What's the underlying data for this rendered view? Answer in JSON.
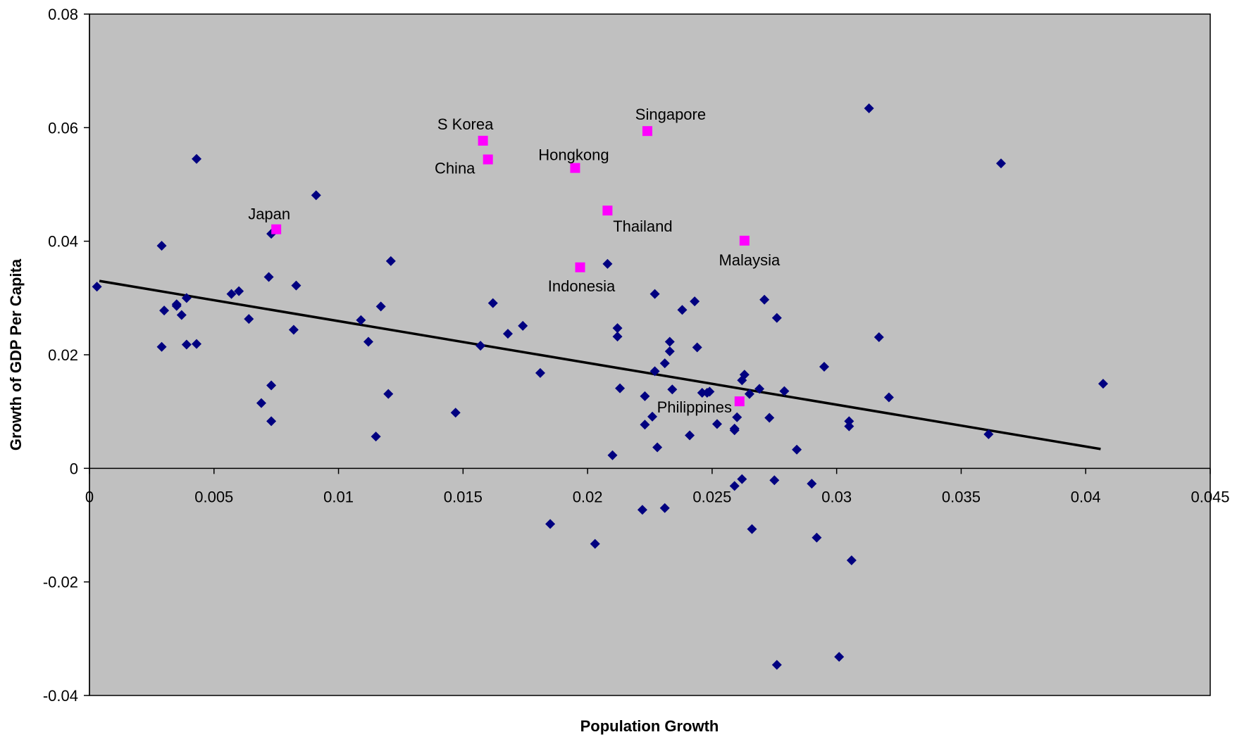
{
  "chart_data": {
    "type": "scatter",
    "title": "",
    "xlabel": "Population Growth",
    "ylabel": "Growth of GDP Per Capita",
    "xlim": [
      0,
      0.045
    ],
    "ylim": [
      -0.04,
      0.08
    ],
    "x_ticks": [
      0,
      0.005,
      0.01,
      0.015,
      0.02,
      0.025,
      0.03,
      0.035,
      0.04,
      0.045
    ],
    "x_tick_labels": [
      "0",
      "0.005",
      "0.01",
      "0.015",
      "0.02",
      "0.025",
      "0.03",
      "0.035",
      "0.04",
      "0.045"
    ],
    "y_ticks": [
      -0.04,
      -0.02,
      0,
      0.02,
      0.04,
      0.06,
      0.08
    ],
    "y_tick_labels": [
      "-0.04",
      "-0.02",
      "0",
      "0.02",
      "0.04",
      "0.06",
      "0.08"
    ],
    "grid": false,
    "legend": "none",
    "colors": {
      "plot_background": "#c0c0c0",
      "other_countries": "#000080",
      "asian_countries": "#ff00ff",
      "trendline": "#000000"
    },
    "trendline": {
      "x": [
        0.0004,
        0.0406
      ],
      "y": [
        0.033,
        0.0034
      ]
    },
    "series": [
      {
        "marker": "diamond",
        "points": [
          [
            0.0003,
            0.032
          ],
          [
            0.0029,
            0.0392
          ],
          [
            0.003,
            0.0278
          ],
          [
            0.0029,
            0.0214
          ],
          [
            0.0035,
            0.0289
          ],
          [
            0.0035,
            0.0286
          ],
          [
            0.0037,
            0.027
          ],
          [
            0.0039,
            0.03
          ],
          [
            0.0039,
            0.0218
          ],
          [
            0.0043,
            0.0219
          ],
          [
            0.0043,
            0.0545
          ],
          [
            0.0057,
            0.0307
          ],
          [
            0.006,
            0.0312
          ],
          [
            0.0064,
            0.0263
          ],
          [
            0.0069,
            0.0115
          ],
          [
            0.0072,
            0.0337
          ],
          [
            0.0073,
            0.0413
          ],
          [
            0.0073,
            0.0146
          ],
          [
            0.0073,
            0.0083
          ],
          [
            0.0082,
            0.0244
          ],
          [
            0.0083,
            0.0322
          ],
          [
            0.0091,
            0.0481
          ],
          [
            0.0109,
            0.0261
          ],
          [
            0.0112,
            0.0223
          ],
          [
            0.0115,
            0.0056
          ],
          [
            0.0117,
            0.0285
          ],
          [
            0.012,
            0.0131
          ],
          [
            0.0121,
            0.0365
          ],
          [
            0.0147,
            0.0098
          ],
          [
            0.0157,
            0.0216
          ],
          [
            0.0162,
            0.0291
          ],
          [
            0.0168,
            0.0237
          ],
          [
            0.0174,
            0.0251
          ],
          [
            0.0181,
            0.0168
          ],
          [
            0.0185,
            -0.0098
          ],
          [
            0.0203,
            -0.0133
          ],
          [
            0.0208,
            0.036
          ],
          [
            0.021,
            0.0023
          ],
          [
            0.0212,
            0.0247
          ],
          [
            0.0212,
            0.0232
          ],
          [
            0.0213,
            0.0141
          ],
          [
            0.0222,
            -0.0073
          ],
          [
            0.0223,
            0.0077
          ],
          [
            0.0223,
            0.0127
          ],
          [
            0.0226,
            0.0091
          ],
          [
            0.0227,
            0.0307
          ],
          [
            0.0227,
            0.0171
          ],
          [
            0.0228,
            0.0037
          ],
          [
            0.0231,
            0.0185
          ],
          [
            0.0231,
            -0.007
          ],
          [
            0.0233,
            0.0223
          ],
          [
            0.0233,
            0.0206
          ],
          [
            0.0234,
            0.0139
          ],
          [
            0.0238,
            0.0279
          ],
          [
            0.0241,
            0.0058
          ],
          [
            0.0243,
            0.0294
          ],
          [
            0.0244,
            0.0213
          ],
          [
            0.0246,
            0.0133
          ],
          [
            0.0248,
            0.0133
          ],
          [
            0.0249,
            0.0135
          ],
          [
            0.0252,
            0.0078
          ],
          [
            0.0259,
            -0.0031
          ],
          [
            0.0259,
            0.0067
          ],
          [
            0.0259,
            0.007
          ],
          [
            0.026,
            0.009
          ],
          [
            0.0262,
            -0.0019
          ],
          [
            0.0262,
            0.0155
          ],
          [
            0.0263,
            0.0165
          ],
          [
            0.0265,
            0.0131
          ],
          [
            0.0266,
            -0.0107
          ],
          [
            0.0269,
            0.014
          ],
          [
            0.0271,
            0.0297
          ],
          [
            0.0273,
            0.0089
          ],
          [
            0.0275,
            -0.0021
          ],
          [
            0.0276,
            0.0265
          ],
          [
            0.0276,
            -0.0346
          ],
          [
            0.0279,
            0.0136
          ],
          [
            0.0284,
            0.0033
          ],
          [
            0.029,
            -0.0027
          ],
          [
            0.0292,
            -0.0122
          ],
          [
            0.0295,
            0.0179
          ],
          [
            0.0301,
            -0.0332
          ],
          [
            0.0305,
            0.0083
          ],
          [
            0.0305,
            0.0074
          ],
          [
            0.0306,
            -0.0162
          ],
          [
            0.0313,
            0.0634
          ],
          [
            0.0317,
            0.0231
          ],
          [
            0.0321,
            0.0125
          ],
          [
            0.0361,
            0.006
          ],
          [
            0.0366,
            0.0537
          ],
          [
            0.0407,
            0.0149
          ]
        ]
      },
      {
        "marker": "square",
        "points": [
          {
            "label": "Japan",
            "x": 0.0075,
            "y": 0.0421
          },
          {
            "label": "S Korea",
            "x": 0.0158,
            "y": 0.0577
          },
          {
            "label": "China",
            "x": 0.016,
            "y": 0.0544
          },
          {
            "label": "Hongkong",
            "x": 0.0195,
            "y": 0.0529
          },
          {
            "label": "Indonesia",
            "x": 0.0197,
            "y": 0.0354
          },
          {
            "label": "Thailand",
            "x": 0.0208,
            "y": 0.0454
          },
          {
            "label": "Singapore",
            "x": 0.0224,
            "y": 0.0594
          },
          {
            "label": "Philippines",
            "x": 0.0261,
            "y": 0.0118
          },
          {
            "label": "Malaysia",
            "x": 0.0263,
            "y": 0.0401
          }
        ]
      }
    ]
  }
}
